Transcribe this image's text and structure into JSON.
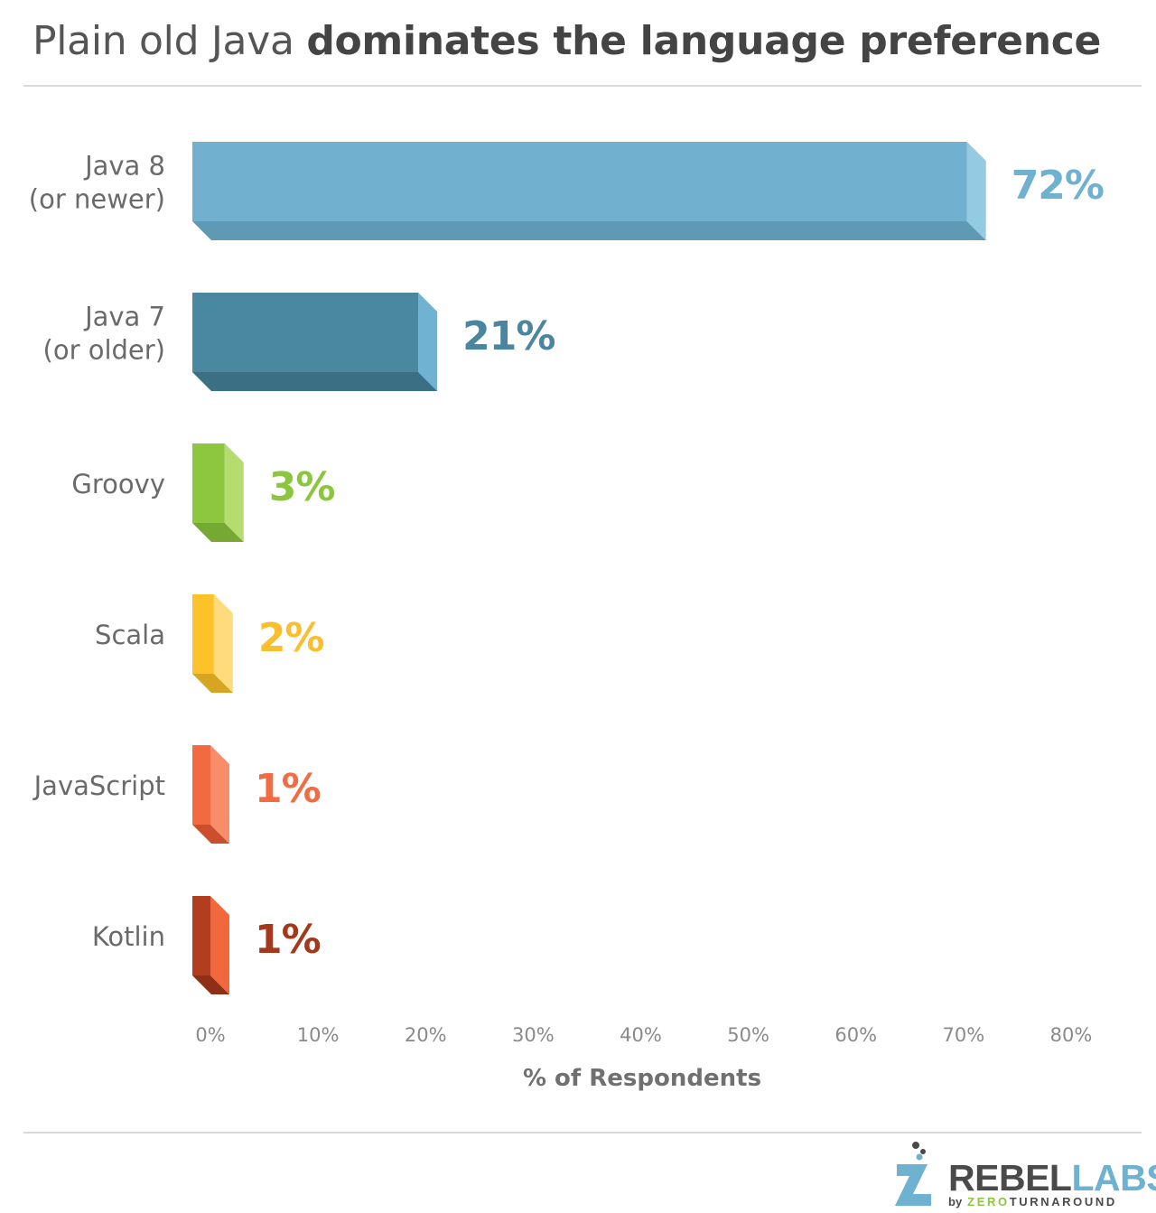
{
  "title": {
    "light": "Plain old Java",
    "bold": "dominates the language preference"
  },
  "chart_data": {
    "type": "bar",
    "orientation": "horizontal",
    "title": "Plain old Java dominates the language preference",
    "xlabel": "% of Respondents",
    "ylabel": "",
    "xlim": [
      0,
      80
    ],
    "xticks": [
      "0%",
      "10%",
      "20%",
      "30%",
      "40%",
      "50%",
      "60%",
      "70%",
      "80%"
    ],
    "grid": false,
    "categories": [
      [
        "Java 8",
        "(or newer)"
      ],
      [
        "Java 7",
        "(or older)"
      ],
      [
        "Groovy"
      ],
      [
        "Scala"
      ],
      [
        "JavaScript"
      ],
      [
        "Kotlin"
      ]
    ],
    "values": [
      72,
      21,
      3,
      2,
      1,
      1
    ],
    "data_labels": [
      "72%",
      "21%",
      "3%",
      "2%",
      "1%",
      "1%"
    ],
    "colors": [
      {
        "face": "#72b0cf",
        "side": "#95cbe2",
        "bottom": "#5f9ab5",
        "label": "#6fb1d0"
      },
      {
        "face": "#4a88a0",
        "side": "#6fb2d2",
        "bottom": "#3a6f84",
        "label": "#4a86a0"
      },
      {
        "face": "#8dc63f",
        "side": "#b4dc6e",
        "bottom": "#76a834",
        "label": "#8cc63f"
      },
      {
        "face": "#fdc22a",
        "side": "#ffdb7e",
        "bottom": "#d6a522",
        "label": "#fbbe2c"
      },
      {
        "face": "#f26a42",
        "side": "#f88d6c",
        "bottom": "#cc4e2c",
        "label": "#f26b43"
      },
      {
        "face": "#b33e1f",
        "side": "#f0683b",
        "bottom": "#8f2f16",
        "label": "#a4381b"
      }
    ]
  },
  "footer": {
    "brand_rebel": "REBEL",
    "brand_labs": "LABS",
    "by": "by",
    "brand_zero": "ZERO",
    "brand_turnaround": "TURNAROUND"
  }
}
